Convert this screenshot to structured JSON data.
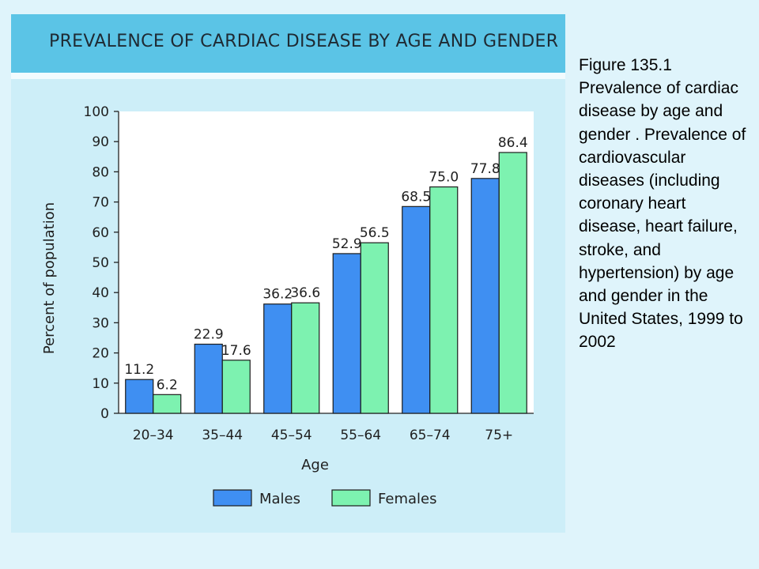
{
  "caption": "Figure 135.1 Prevalence of cardiac disease by age and gender . Prevalence of cardiovascular diseases (including coronary heart disease, heart failure, stroke, and hypertension) by age and gender in the United States, 1999 to 2002",
  "chart_data": {
    "type": "bar",
    "title": "PREVALENCE OF CARDIAC DISEASE BY AGE AND GENDER",
    "xlabel": "Age",
    "ylabel": "Percent of population",
    "ylim": [
      0,
      100
    ],
    "yticks": [
      0,
      10,
      20,
      30,
      40,
      50,
      60,
      70,
      80,
      90,
      100
    ],
    "categories": [
      "20–34",
      "35–44",
      "45–54",
      "55–64",
      "65–74",
      "75+"
    ],
    "series": [
      {
        "name": "Males",
        "color": "#3f8ff2",
        "values": [
          11.2,
          22.9,
          36.2,
          52.9,
          68.5,
          77.8
        ],
        "labels": [
          "11.2",
          "22.9",
          "36.2",
          "52.9",
          "68.5",
          "77.8"
        ]
      },
      {
        "name": "Females",
        "color": "#7df2b0",
        "values": [
          6.2,
          17.6,
          36.6,
          56.5,
          75.0,
          86.4
        ],
        "labels": [
          "6.2",
          "17.6",
          "36.6",
          "56.5",
          "75.0",
          "86.4"
        ]
      }
    ],
    "grid": false,
    "legend_position": "bottom"
  }
}
